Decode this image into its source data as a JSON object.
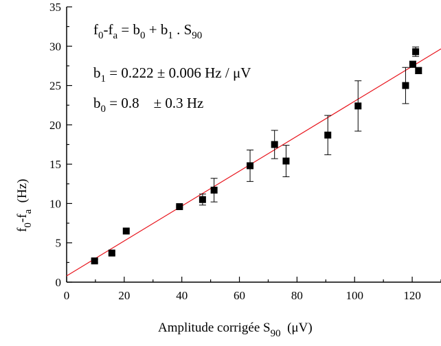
{
  "chart_data": {
    "type": "scatter",
    "xlabel": {
      "main": "Amplitude corrigée S",
      "sub": "90",
      "unit": "(μV)"
    },
    "ylabel": {
      "f": "f",
      "sub0": "0",
      "dash": "-f",
      "suba": "a",
      "unit": "(Hz)"
    },
    "xlim": [
      0,
      130
    ],
    "ylim": [
      0,
      35
    ],
    "x_ticks": [
      0,
      20,
      40,
      60,
      80,
      100,
      120
    ],
    "y_ticks": [
      0,
      5,
      10,
      15,
      20,
      25,
      30,
      35
    ],
    "grid": false,
    "annotations": {
      "equation": "f0-fa = b0 + b1 . S90",
      "b1": "b1 = 0.222 ± 0.006 Hz / μV",
      "b0": "b0 = 0.8    ± 0.3 Hz"
    },
    "series": [
      {
        "points": [
          {
            "x": 9.7,
            "y": 2.7,
            "err": 0.2
          },
          {
            "x": 15.7,
            "y": 3.7,
            "err": 0.2
          },
          {
            "x": 20.7,
            "y": 6.5,
            "err": 0.0
          },
          {
            "x": 39.2,
            "y": 9.6,
            "err": 0.1
          },
          {
            "x": 47.2,
            "y": 10.5,
            "err": 0.7
          },
          {
            "x": 51.2,
            "y": 11.7,
            "err": 1.5
          },
          {
            "x": 63.7,
            "y": 14.8,
            "err": 2.0
          },
          {
            "x": 72.2,
            "y": 17.5,
            "err": 1.8
          },
          {
            "x": 76.2,
            "y": 15.4,
            "err": 2.0
          },
          {
            "x": 90.7,
            "y": 18.7,
            "err": 2.5
          },
          {
            "x": 101.2,
            "y": 22.4,
            "err": 3.2
          },
          {
            "x": 117.7,
            "y": 25.0,
            "err": 2.3
          },
          {
            "x": 120.2,
            "y": 27.7,
            "err": 0.4
          },
          {
            "x": 121.2,
            "y": 29.3,
            "err": 0.6
          },
          {
            "x": 122.2,
            "y": 26.9,
            "err": 0.4
          }
        ],
        "marker_color": "#000000"
      }
    ],
    "fit_line": {
      "intercept": 0.8,
      "slope": 0.222,
      "color": "#e8141c"
    }
  }
}
